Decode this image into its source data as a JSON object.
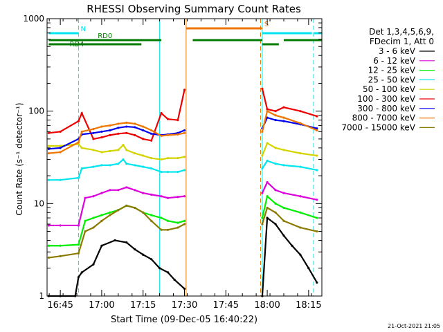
{
  "chart_data": {
    "type": "line",
    "title": "RHESSI Observing Summary Count Rates",
    "xlabel": "Start Time (09-Dec-05 16:40:22)",
    "ylabel": "Count Rate (s⁻¹ detector⁻¹)",
    "y_scale": "log",
    "ylim": [
      1,
      1000
    ],
    "xlim_minutes": [
      16.67,
      18.33
    ],
    "x_ticks": [
      "16:45",
      "17:00",
      "17:15",
      "17:30",
      "17:45",
      "18:00",
      "18:15"
    ],
    "x_tick_values": [
      16.75,
      17.0,
      17.25,
      17.5,
      17.75,
      18.0,
      18.25
    ],
    "y_ticks": [
      "1",
      "10",
      "100",
      "1000"
    ],
    "y_tick_values": [
      1,
      10,
      100,
      1000
    ],
    "legend": {
      "placement": "right",
      "header": [
        "Det 1,3,4,5,6,9,",
        "FDecim 1, Att 0"
      ]
    },
    "footer": "21-Oct-2021 21:05",
    "data_gaps": [
      [
        17.5,
        17.97
      ]
    ],
    "flag_bars": [
      {
        "label": "N",
        "color": "#00e5ee",
        "segments": [
          [
            16.68,
            16.86
          ],
          [
            18.28,
            18.33
          ]
        ],
        "y_frac": 0.84
      },
      {
        "label": "",
        "color": "#00e5ee",
        "segments": [
          [
            17.97,
            18.27
          ]
        ],
        "y_frac": 0.84
      },
      {
        "label": "S",
        "color": "#ee7600",
        "segments": [
          [
            17.51,
            17.97
          ]
        ],
        "y_frac": 0.86
      },
      {
        "label": "RD0",
        "color": "#007a00",
        "segments": [
          [
            16.68,
            17.36
          ],
          [
            17.55,
            17.97
          ],
          [
            18.1,
            18.33
          ]
        ],
        "y_frac": 0.855,
        "label_pos": 17.02
      },
      {
        "label": "RD4",
        "color": "#007a00",
        "segments": [
          [
            16.68,
            17.0
          ],
          [
            17.0,
            17.24
          ],
          [
            17.97,
            18.07
          ]
        ],
        "y_frac": 0.82,
        "label_pos": 16.85
      }
    ],
    "vlines": [
      {
        "x": 16.86,
        "color": "#00e5ee",
        "dash": true
      },
      {
        "x": 17.51,
        "color": "#ee7600",
        "dash": false
      },
      {
        "x": 17.96,
        "color": "#ee7600",
        "dash": true
      },
      {
        "x": 17.97,
        "color": "#00e5ee",
        "dash": false
      },
      {
        "x": 18.28,
        "color": "#00e5ee",
        "dash": true
      },
      {
        "x": 17.35,
        "color": "#00e5ee",
        "dash": false
      }
    ],
    "series": [
      {
        "name": "3 - 6 keV",
        "color": "#000000",
        "x": [
          16.68,
          16.75,
          16.84,
          16.86,
          16.88,
          16.95,
          17.0,
          17.08,
          17.15,
          17.2,
          17.25,
          17.3,
          17.35,
          17.4,
          17.44,
          17.5,
          17.97,
          18.0,
          18.05,
          18.1,
          18.15,
          18.2,
          18.25,
          18.3
        ],
        "y": [
          1,
          1,
          1,
          1.6,
          1.8,
          2.2,
          3.5,
          4.0,
          3.8,
          3.2,
          2.8,
          2.5,
          2.0,
          1.8,
          1.5,
          1.2,
          1,
          7,
          6,
          4.5,
          3.5,
          2.8,
          2.0,
          1.4
        ]
      },
      {
        "name": "6 - 12 keV",
        "color": "#dd00dd",
        "x": [
          16.68,
          16.75,
          16.86,
          16.9,
          16.95,
          17.0,
          17.05,
          17.1,
          17.15,
          17.2,
          17.25,
          17.3,
          17.36,
          17.4,
          17.46,
          17.5,
          17.97,
          18.0,
          18.05,
          18.1,
          18.2,
          18.3
        ],
        "y": [
          5.8,
          5.8,
          5.8,
          11.5,
          12,
          13,
          14,
          14,
          15,
          14,
          13,
          12.5,
          12,
          11.5,
          11.8,
          12,
          13,
          17,
          14,
          13,
          12,
          11
        ]
      },
      {
        "name": "12 - 25 keV",
        "color": "#00ee00",
        "x": [
          16.68,
          16.75,
          16.86,
          16.9,
          16.95,
          17.0,
          17.05,
          17.1,
          17.15,
          17.2,
          17.25,
          17.3,
          17.36,
          17.4,
          17.46,
          17.5,
          17.97,
          18.0,
          18.05,
          18.1,
          18.2,
          18.3
        ],
        "y": [
          3.5,
          3.5,
          3.6,
          6.5,
          7,
          7.5,
          8,
          8.5,
          9.5,
          9,
          8,
          7.5,
          7,
          6.5,
          6.2,
          6.5,
          7,
          12,
          10,
          9,
          8,
          7
        ]
      },
      {
        "name": "25 - 50 keV",
        "color": "#00e5ee",
        "x": [
          16.68,
          16.75,
          16.86,
          16.88,
          16.95,
          17.0,
          17.05,
          17.1,
          17.13,
          17.15,
          17.2,
          17.25,
          17.3,
          17.36,
          17.4,
          17.46,
          17.5,
          17.97,
          18.0,
          18.05,
          18.1,
          18.2,
          18.3
        ],
        "y": [
          18,
          18,
          19,
          24,
          25,
          26,
          26,
          27,
          30,
          27,
          26,
          25,
          24,
          22,
          22,
          22,
          23,
          24,
          29,
          27,
          26,
          25,
          23
        ]
      },
      {
        "name": "50 - 100 keV",
        "color": "#d4d400",
        "x": [
          16.68,
          16.75,
          16.86,
          16.88,
          16.95,
          17.0,
          17.05,
          17.1,
          17.13,
          17.15,
          17.2,
          17.25,
          17.3,
          17.36,
          17.4,
          17.46,
          17.5,
          17.97,
          18.0,
          18.05,
          18.1,
          18.2,
          18.3
        ],
        "y": [
          42,
          42,
          44,
          40,
          38,
          36,
          37,
          38,
          43,
          38,
          35,
          33,
          31,
          30,
          31,
          31,
          32,
          33,
          45,
          40,
          38,
          35,
          33
        ]
      },
      {
        "name": "100 - 300 keV",
        "color": "#ee0000",
        "x": [
          16.68,
          16.75,
          16.86,
          16.88,
          16.95,
          17.0,
          17.05,
          17.1,
          17.15,
          17.2,
          17.25,
          17.3,
          17.36,
          17.4,
          17.46,
          17.5,
          17.97,
          18.0,
          18.05,
          18.1,
          18.2,
          18.3
        ],
        "y": [
          58,
          60,
          78,
          95,
          50,
          52,
          55,
          57,
          58,
          55,
          50,
          48,
          95,
          82,
          80,
          170,
          175,
          105,
          100,
          110,
          100,
          88
        ]
      },
      {
        "name": "300 - 800 keV",
        "color": "#0000ee",
        "x": [
          16.68,
          16.75,
          16.86,
          16.88,
          16.95,
          17.0,
          17.05,
          17.1,
          17.15,
          17.2,
          17.25,
          17.3,
          17.36,
          17.4,
          17.46,
          17.5,
          17.97,
          18.0,
          18.05,
          18.1,
          18.2,
          18.3
        ],
        "y": [
          39,
          40,
          50,
          56,
          58,
          60,
          62,
          66,
          68,
          67,
          62,
          57,
          55,
          56,
          58,
          62,
          65,
          85,
          80,
          78,
          72,
          65
        ]
      },
      {
        "name": "800 - 7000 keV",
        "color": "#ee7600",
        "x": [
          16.68,
          16.75,
          16.86,
          16.88,
          16.95,
          17.0,
          17.05,
          17.1,
          17.15,
          17.2,
          17.25,
          17.3,
          17.36,
          17.4,
          17.46,
          17.5,
          17.97,
          18.0,
          18.05,
          18.1,
          18.2,
          18.3
        ],
        "y": [
          35,
          36,
          46,
          60,
          64,
          68,
          70,
          73,
          75,
          73,
          68,
          62,
          54,
          55,
          56,
          58,
          60,
          100,
          90,
          85,
          74,
          62
        ]
      },
      {
        "name": "7000 - 15000 keV",
        "color": "#8b7a00",
        "x": [
          16.68,
          16.75,
          16.86,
          16.9,
          16.95,
          17.0,
          17.05,
          17.1,
          17.15,
          17.2,
          17.25,
          17.3,
          17.36,
          17.4,
          17.46,
          17.5,
          17.97,
          18.0,
          18.05,
          18.1,
          18.2,
          18.3
        ],
        "y": [
          2.6,
          2.7,
          2.9,
          5.0,
          5.5,
          6.5,
          7.5,
          8.5,
          9.5,
          9.0,
          8.0,
          6.5,
          5.2,
          5.2,
          5.5,
          6.0,
          6.0,
          9,
          8,
          6.5,
          5.5,
          5.0
        ]
      }
    ]
  }
}
